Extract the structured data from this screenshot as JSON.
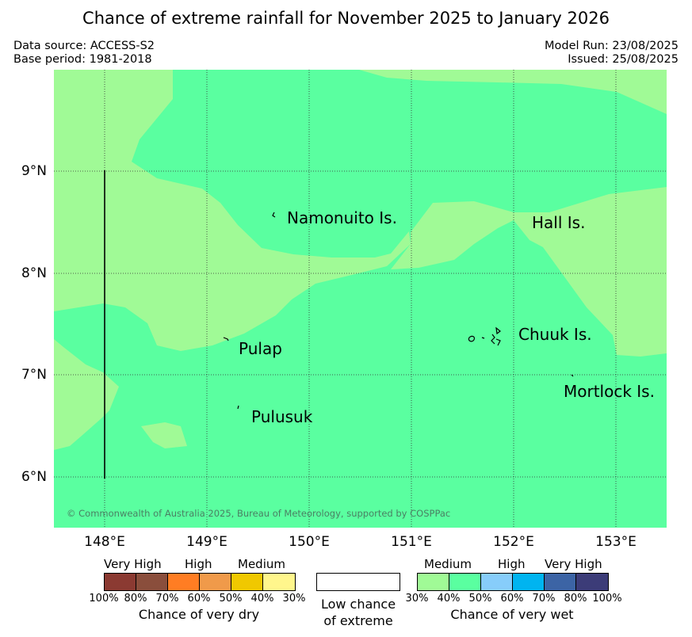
{
  "title": "Chance of extreme rainfall for November 2025 to January 2026",
  "meta": {
    "source": "Data source: ACCESS-S2",
    "base_period": "Base period: 1981-2018",
    "model_run": "Model Run: 23/08/2025",
    "issued": "Issued: 25/08/2025"
  },
  "map": {
    "lat_labels": [
      "9°N",
      "8°N",
      "7°N",
      "6°N"
    ],
    "lon_labels": [
      "148°E",
      "149°E",
      "150°E",
      "151°E",
      "152°E",
      "153°E"
    ],
    "places": {
      "namonuito": "Namonuito Is.",
      "hall": "Hall Is.",
      "pulap": "Pulap",
      "chuuk": "Chuuk Is.",
      "mortlock": "Mortlock Is.",
      "pulusuk": "Pulusuk"
    },
    "copyright": "© Commonwealth of Australia 2025, Bureau of Meteorology, supported by COSPPac",
    "colors": {
      "light_green_30_40": "#a0fa96",
      "green_40_50": "#5affa0"
    }
  },
  "legend": {
    "dry": {
      "headers": {
        "very_high": "Very High",
        "high": "High",
        "medium": "Medium"
      },
      "colors": [
        "#8b3a32",
        "#8a4e3c",
        "#ff7d23",
        "#f09a4a",
        "#f0c800",
        "#fff68c"
      ],
      "ticks": [
        "100%",
        "80%",
        "70%",
        "60%",
        "50%",
        "40%",
        "30%"
      ],
      "caption": "Chance of very dry"
    },
    "low": {
      "line1": "Low chance",
      "line2": "of extreme"
    },
    "wet": {
      "headers": {
        "medium": "Medium",
        "high": "High",
        "very_high": "Very High"
      },
      "colors": [
        "#a0fa96",
        "#5affa0",
        "#87cdfa",
        "#00b4f0",
        "#3c64a5",
        "#3c3c78"
      ],
      "ticks": [
        "30%",
        "40%",
        "50%",
        "60%",
        "70%",
        "80%",
        "100%"
      ],
      "caption": "Chance of very wet"
    }
  }
}
